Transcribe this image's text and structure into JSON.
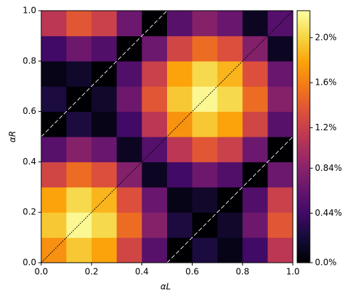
{
  "chart_data": {
    "type": "heatmap",
    "colormap": "inferno",
    "xlabel": "αL",
    "ylabel": "αR",
    "xlim": [
      0,
      1
    ],
    "ylim": [
      0,
      1
    ],
    "xticks": [
      {
        "value": 0,
        "label": "0.0"
      },
      0.2,
      0.4,
      0.6,
      0.8,
      {
        "value": 1,
        "label": "1.0"
      }
    ],
    "yticks": [
      {
        "value": 0,
        "label": "0.0"
      },
      0.2,
      0.4,
      0.6,
      0.8,
      {
        "value": 1,
        "label": "1.0"
      }
    ],
    "clim": [
      0,
      2.24
    ],
    "cticks": [
      {
        "value": 0,
        "label": "0.0%"
      },
      {
        "value": 0.44,
        "label": "0.44%"
      },
      {
        "value": 0.84,
        "label": "0.84%"
      },
      {
        "value": 1.2,
        "label": "1.2%"
      },
      {
        "value": 1.6,
        "label": "1.6%"
      },
      {
        "value": 2.0,
        "label": "2.0%"
      }
    ],
    "z": [
      [
        1.69,
        1.95,
        1.78,
        1.25,
        0.57,
        0,
        0.25,
        0.08,
        0.44,
        1.12
      ],
      [
        1.95,
        2.2,
        2.03,
        1.5,
        0.82,
        0.25,
        0,
        0.17,
        0.69,
        1.38
      ],
      [
        1.78,
        2.03,
        1.86,
        1.33,
        0.66,
        0.08,
        0.17,
        0,
        0.53,
        1.21
      ],
      [
        1.25,
        1.5,
        1.33,
        0.81,
        0.13,
        0.44,
        0.69,
        0.53,
        0,
        0.68
      ],
      [
        0.57,
        0.82,
        0.66,
        0.13,
        0.55,
        1.12,
        1.38,
        1.21,
        0.68,
        0
      ],
      [
        0,
        0.25,
        0.08,
        0.44,
        1.12,
        1.7,
        1.95,
        1.78,
        1.25,
        0.57
      ],
      [
        0.25,
        0,
        0.17,
        0.69,
        1.38,
        1.95,
        2.2,
        2.03,
        1.5,
        0.82
      ],
      [
        0.08,
        0.17,
        0,
        0.53,
        1.21,
        1.78,
        2.03,
        1.86,
        1.33,
        0.66
      ],
      [
        0.44,
        0.69,
        0.53,
        0,
        0.68,
        1.25,
        1.5,
        1.33,
        0.81,
        0.13
      ],
      [
        1.12,
        1.38,
        1.21,
        0.68,
        0,
        0.57,
        0.82,
        0.66,
        0.13,
        0.55
      ]
    ],
    "lines": [
      {
        "x": [
          0,
          1
        ],
        "y": [
          0,
          1
        ],
        "color": "#000000",
        "dash": "dotted"
      },
      {
        "x": [
          0,
          0.5
        ],
        "y": [
          0.5,
          1
        ],
        "color": "#ffffff",
        "dash": "dashed"
      },
      {
        "x": [
          0.5,
          1
        ],
        "y": [
          0,
          0.5
        ],
        "color": "#ffffff",
        "dash": "dashed"
      }
    ]
  }
}
